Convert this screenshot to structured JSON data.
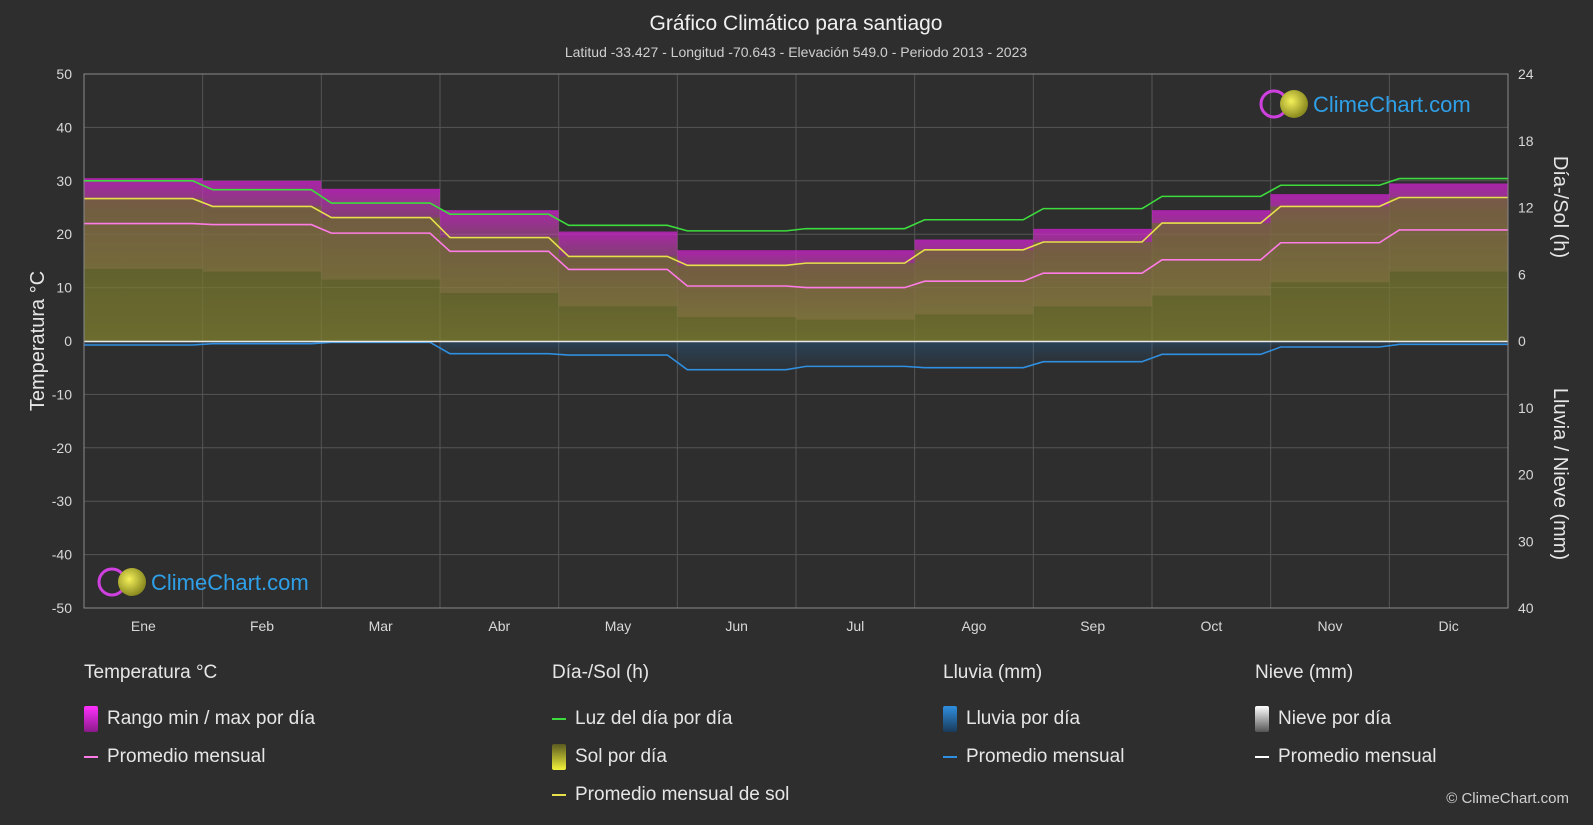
{
  "chart_data": {
    "type": "line",
    "title": "Gráfico Climático para santiago",
    "subtitle": "Latitud -33.427 - Longitud -70.643 - Elevación 549.0 - Periodo 2013 - 2023",
    "ylabel_left": "Temperatura °C",
    "ylabel_right_top": "Día-/Sol (h)",
    "ylabel_right_bottom": "Lluvia / Nieve (mm)",
    "ylim_left": [
      -50,
      50
    ],
    "ylim_right_top": [
      0,
      24
    ],
    "ylim_right_bottom": [
      40,
      0
    ],
    "yticks_left": [
      "50",
      "40",
      "30",
      "20",
      "10",
      "0",
      "-10",
      "-20",
      "-30",
      "-40",
      "-50"
    ],
    "yticks_right_top": [
      "24",
      "18",
      "12",
      "6",
      "0"
    ],
    "yticks_right_bottom": [
      "10",
      "20",
      "30",
      "40"
    ],
    "categories": [
      "Ene",
      "Feb",
      "Mar",
      "Abr",
      "May",
      "Jun",
      "Jul",
      "Ago",
      "Sep",
      "Oct",
      "Nov",
      "Dic"
    ],
    "grid": true,
    "series": [
      {
        "name": "Luz del día por día",
        "unit": "h",
        "color": "#3ddc3d",
        "values": [
          14.4,
          13.6,
          12.4,
          11.4,
          10.4,
          9.9,
          10.1,
          10.9,
          11.9,
          13.0,
          14.0,
          14.6
        ]
      },
      {
        "name": "Promedio mensual de sol",
        "unit": "h",
        "color": "#e6e04a",
        "values": [
          12.8,
          12.1,
          11.1,
          9.3,
          7.6,
          6.8,
          7.0,
          8.2,
          8.9,
          10.6,
          12.1,
          12.9
        ]
      },
      {
        "name": "Promedio mensual",
        "group": "Temperatura °C",
        "unit": "°C",
        "color": "#ff7be6",
        "values": [
          22.0,
          21.8,
          20.2,
          16.8,
          13.4,
          10.3,
          10.0,
          11.2,
          12.7,
          15.2,
          18.4,
          20.8
        ]
      },
      {
        "name": "Rango min / max por día",
        "unit": "°C",
        "color": "#cc33cc",
        "min": [
          13.5,
          13.0,
          11.5,
          9.0,
          6.5,
          4.5,
          4.0,
          5.0,
          6.5,
          8.5,
          11.0,
          13.0
        ],
        "max": [
          30.5,
          30.0,
          28.5,
          24.5,
          20.5,
          17.0,
          17.0,
          19.0,
          21.0,
          24.5,
          27.5,
          29.5
        ]
      },
      {
        "name": "Promedio mensual",
        "group": "Lluvia (mm)",
        "unit": "mm",
        "color": "#2f8fe0",
        "values": [
          0.6,
          0.4,
          0.2,
          1.9,
          2.1,
          4.3,
          3.8,
          4.0,
          3.1,
          2.0,
          0.9,
          0.5
        ]
      },
      {
        "name": "Promedio mensual",
        "group": "Nieve (mm)",
        "unit": "mm",
        "color": "#ffffff",
        "values": [
          0,
          0,
          0,
          0,
          0,
          0,
          0,
          0,
          0,
          0,
          0,
          0
        ]
      }
    ]
  },
  "watermark": {
    "text": "ClimeChart.com"
  },
  "legend": {
    "groups": [
      {
        "title": "Temperatura °C",
        "items": [
          {
            "label": "Rango min / max por día",
            "kind": "box",
            "color": "#e020e0"
          },
          {
            "label": "Promedio mensual",
            "kind": "line",
            "color": "#ff7be6"
          }
        ]
      },
      {
        "title": "Día-/Sol (h)",
        "items": [
          {
            "label": "Luz del día por día",
            "kind": "line",
            "color": "#3ddc3d"
          },
          {
            "label": "Sol por día",
            "kind": "box",
            "color": "#d8d830"
          },
          {
            "label": "Promedio mensual de sol",
            "kind": "line",
            "color": "#e6e04a"
          }
        ]
      },
      {
        "title": "Lluvia (mm)",
        "items": [
          {
            "label": "Lluvia por día",
            "kind": "box",
            "color": "#2f8fe0"
          },
          {
            "label": "Promedio mensual",
            "kind": "line",
            "color": "#2f8fe0"
          }
        ]
      },
      {
        "title": "Nieve (mm)",
        "items": [
          {
            "label": "Nieve por día",
            "kind": "box",
            "color": "#e8e8e8"
          },
          {
            "label": "Promedio mensual",
            "kind": "line",
            "color": "#ffffff"
          }
        ]
      }
    ]
  },
  "copyright": "© ClimeChart.com"
}
